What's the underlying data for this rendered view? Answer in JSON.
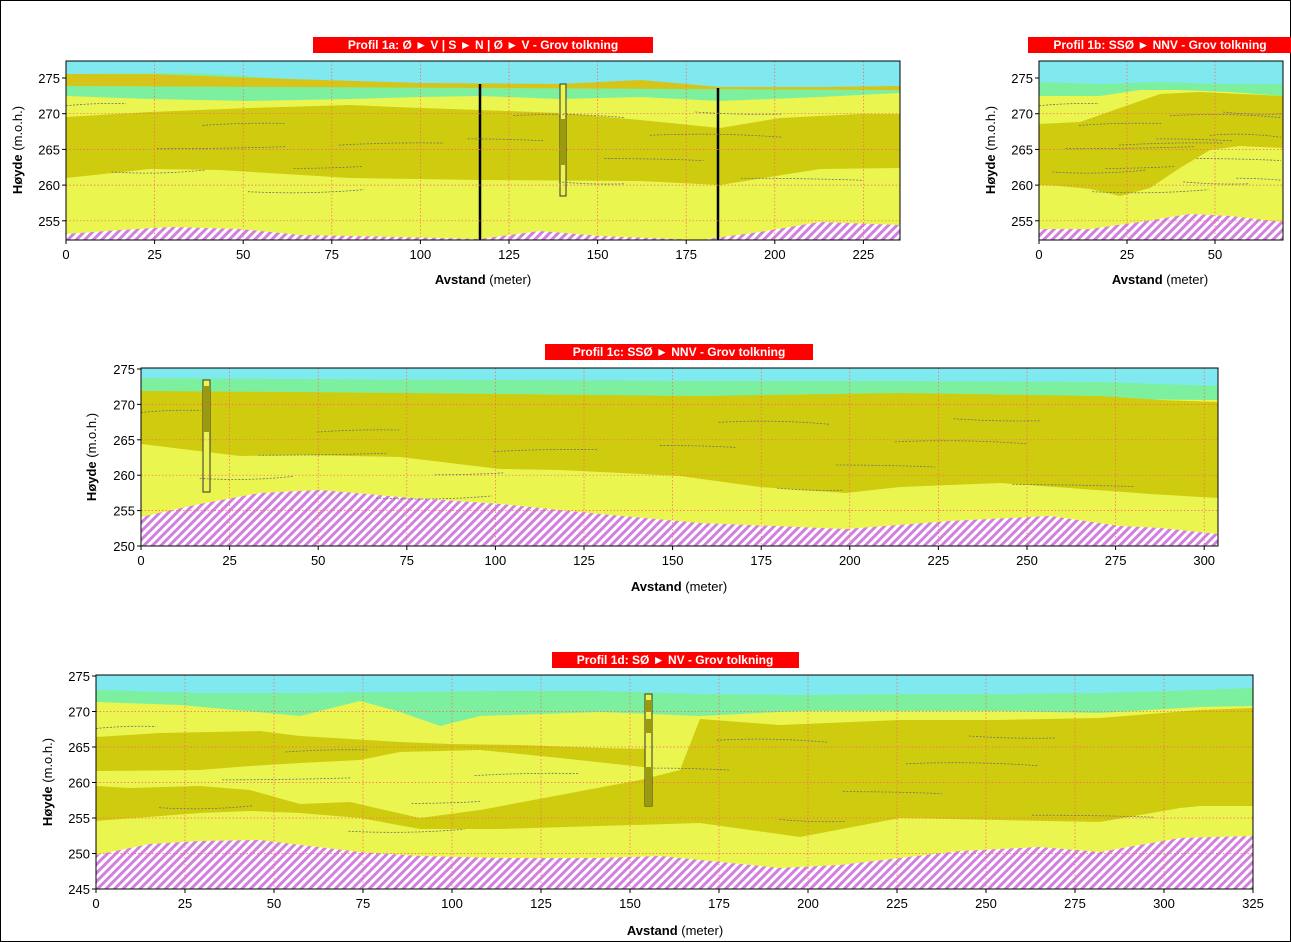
{
  "colors": {
    "sky": "#7fe9ef",
    "green": "#7df0a0",
    "light_yellow": "#eaf550",
    "dark_yellow": "#cfcc10",
    "bedrock_hatch": "#d27fe0",
    "title_bg": "#ff0000",
    "grid": "#ff6060"
  },
  "profiles": [
    {
      "id": "1a",
      "title": "Profil 1a: Ø ► V | S ► N | Ø ► V - Grov tolkning",
      "ylabel_bold": "Høyde",
      "ylabel_unit": " (m.o.h.)",
      "xlabel_bold": "Avstand",
      "xlabel_unit": " (meter)",
      "x_ticks": [
        "0",
        "25",
        "50",
        "75",
        "100",
        "125",
        "150",
        "175",
        "200",
        "225"
      ],
      "y_ticks": [
        "275",
        "270",
        "265",
        "260",
        "255"
      ]
    },
    {
      "id": "1b",
      "title": "Profil 1b: SSØ ► NNV - Grov tolkning",
      "ylabel_bold": "Høyde",
      "ylabel_unit": " (m.o.h.)",
      "xlabel_bold": "Avstand",
      "xlabel_unit": " (meter)",
      "x_ticks": [
        "0",
        "25",
        "50"
      ],
      "y_ticks": [
        "275",
        "270",
        "265",
        "260",
        "255"
      ]
    },
    {
      "id": "1c",
      "title": "Profil 1c: SSØ ► NNV - Grov tolkning",
      "ylabel_bold": "Høyde",
      "ylabel_unit": " (m.o.h.)",
      "xlabel_bold": "Avstand",
      "xlabel_unit": " (meter)",
      "x_ticks": [
        "0",
        "25",
        "50",
        "75",
        "100",
        "125",
        "150",
        "175",
        "200",
        "225",
        "250",
        "275",
        "300"
      ],
      "y_ticks": [
        "275",
        "270",
        "265",
        "260",
        "255",
        "250"
      ]
    },
    {
      "id": "1d",
      "title": "Profil 1d: SØ ► NV - Grov tolkning",
      "ylabel_bold": "Høyde",
      "ylabel_unit": " (m.o.h.)",
      "xlabel_bold": "Avstand",
      "xlabel_unit": " (meter)",
      "x_ticks": [
        "0",
        "25",
        "50",
        "75",
        "100",
        "125",
        "150",
        "175",
        "200",
        "225",
        "250",
        "275",
        "300",
        "325"
      ],
      "y_ticks": [
        "275",
        "270",
        "265",
        "260",
        "255",
        "250",
        "245"
      ]
    }
  ]
}
